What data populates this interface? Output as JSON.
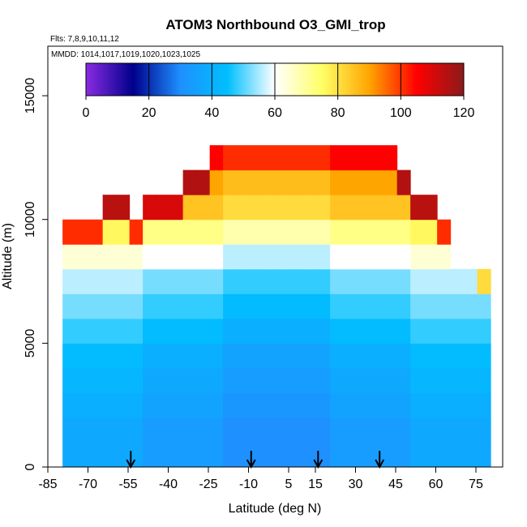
{
  "chart_data": {
    "type": "heatmap",
    "title": "ATOM3 Northbound O3_GMI_trop",
    "flights_label": "Flts: 7,8,9,10,11,12",
    "dates_label": "MMDD: 1014,1017,1019,1020,1023,1025",
    "xlabel": "Latitude (deg N)",
    "ylabel": "Altitude (m)",
    "xlim": [
      -85,
      85
    ],
    "ylim": [
      0,
      17000
    ],
    "x_ticks": [
      "-85",
      "-70",
      "-55",
      "-40",
      "-25",
      "-10",
      "5",
      "15",
      "30",
      "45",
      "60",
      "75"
    ],
    "x_tick_values": [
      -85,
      -70,
      -55,
      -40,
      -25,
      -10,
      5,
      15,
      30,
      45,
      60,
      75
    ],
    "y_ticks": [
      "0",
      "5000",
      "10000",
      "15000"
    ],
    "y_tick_values": [
      0,
      5000,
      10000,
      15000
    ],
    "colorbar": {
      "min": 0,
      "max": 120,
      "ticks": [
        "0",
        "20",
        "40",
        "60",
        "80",
        "100",
        "120"
      ],
      "tick_values": [
        0,
        20,
        40,
        60,
        80,
        100,
        120
      ],
      "colors": [
        "#8a2be2",
        "#00008b",
        "#1e90ff",
        "#00bfff",
        "#ffffff",
        "#ffff66",
        "#ffa500",
        "#ff0000",
        "#8b1a1a"
      ]
    },
    "latitude_bins": [
      -77,
      -72,
      -67,
      -62,
      -57,
      -52,
      -47,
      -42,
      -37,
      -32,
      -27,
      -22,
      -17,
      -12,
      -7,
      -2,
      3,
      8,
      13,
      18,
      23,
      28,
      33,
      38,
      43,
      48,
      53,
      58,
      63,
      68,
      73,
      78
    ],
    "altitude_bins": [
      0,
      1000,
      2000,
      3000,
      4000,
      5000,
      6000,
      7000,
      8000,
      9000,
      10000,
      11000,
      12000,
      13000
    ],
    "profile_top_altitudes": [
      10500,
      10500,
      10500,
      10800,
      10800,
      10500,
      10800,
      11500,
      11500,
      11800,
      12500,
      12800,
      13000,
      13000,
      13000,
      13200,
      13000,
      13000,
      13000,
      13000,
      13000,
      13000,
      13000,
      12800,
      12800,
      12000,
      11500,
      10800,
      10300,
      8700,
      8700,
      8000
    ],
    "ozone_by_altitude_ppb": [
      34,
      34,
      36,
      38,
      40,
      44,
      48,
      52,
      60,
      72,
      85,
      90,
      80,
      65
    ],
    "arrow_latitudes": [
      -54,
      -9,
      16,
      39
    ]
  }
}
